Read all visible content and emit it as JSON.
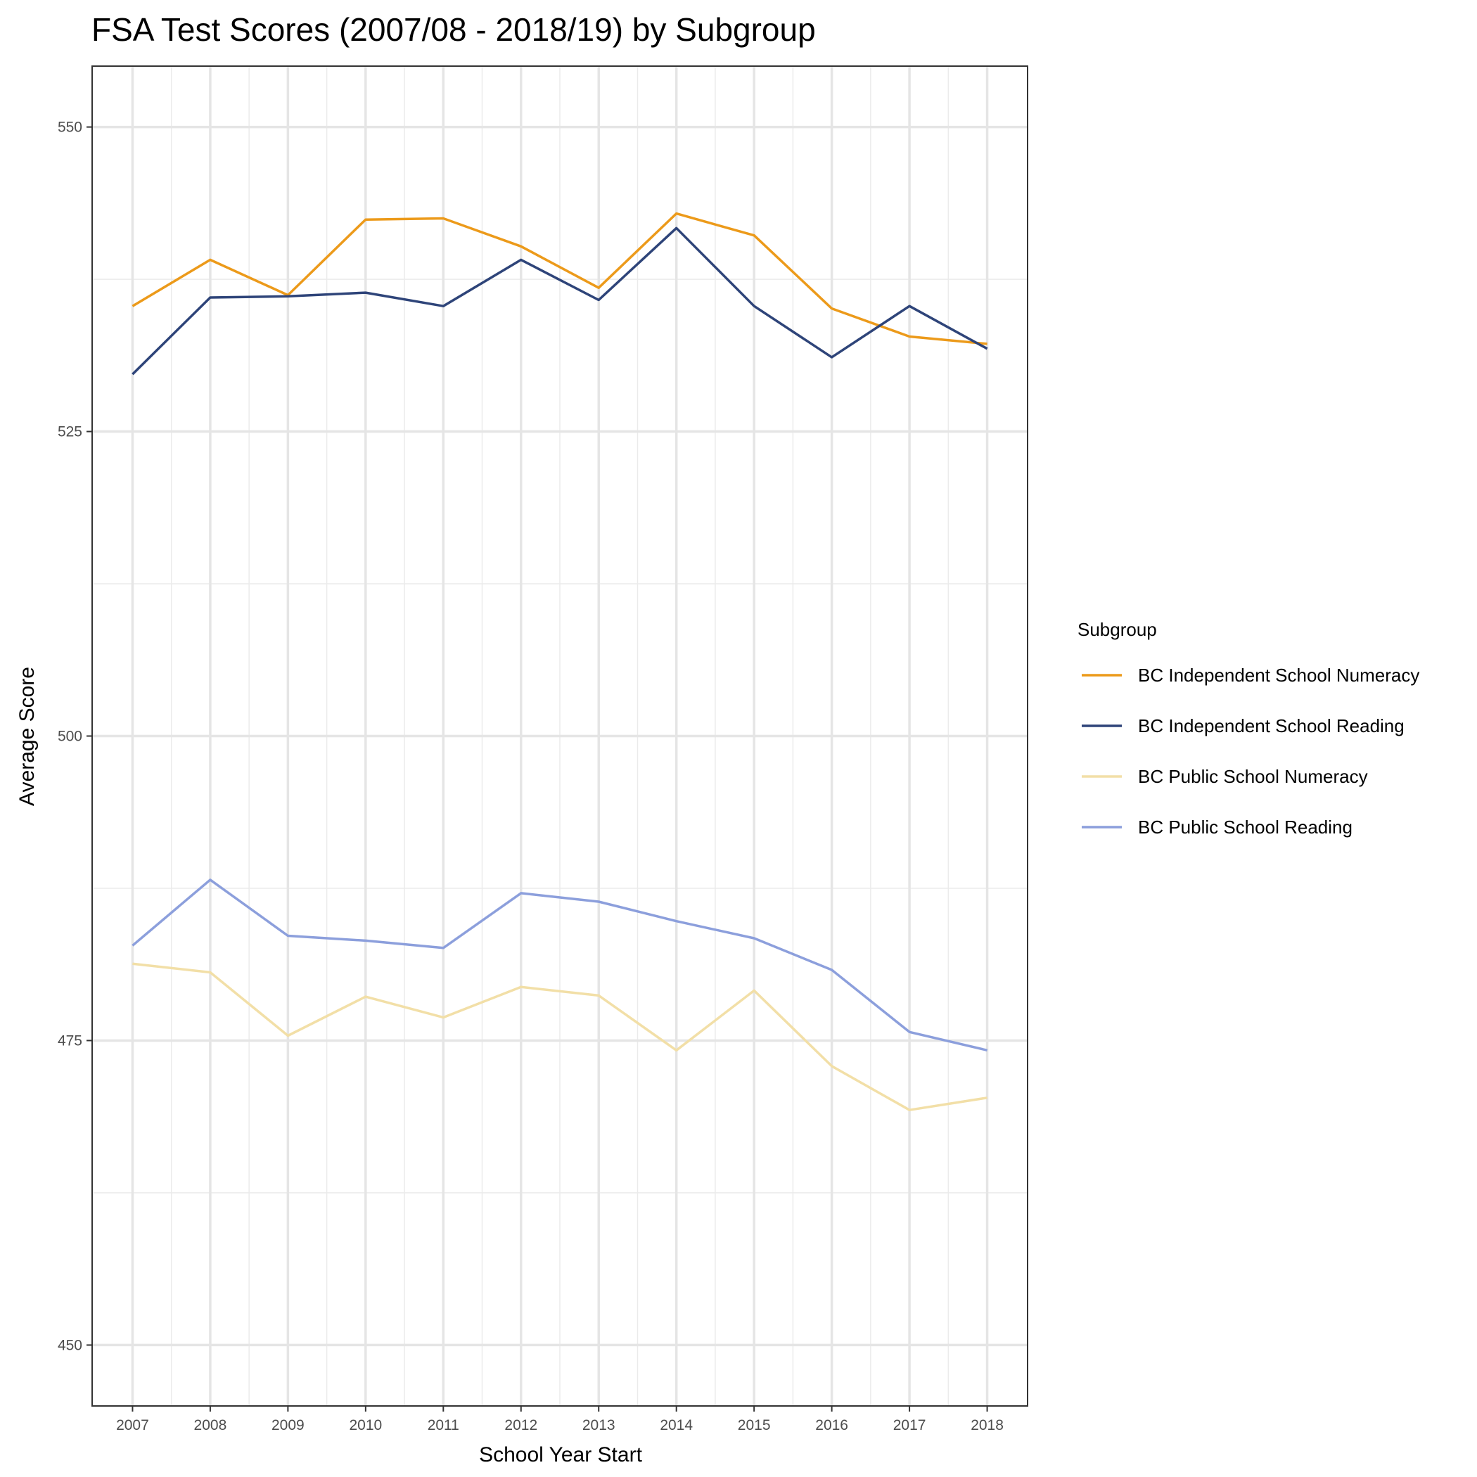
{
  "chart_data": {
    "type": "line",
    "title": "FSA Test Scores (2007/08 - 2018/19) by Subgroup",
    "xlabel": "School Year Start",
    "ylabel": "Average Score",
    "x": [
      2007,
      2008,
      2009,
      2010,
      2011,
      2012,
      2013,
      2014,
      2015,
      2016,
      2017,
      2018
    ],
    "x_tick_labels": [
      "2007",
      "2008",
      "2009",
      "2010",
      "2011",
      "2012",
      "2013",
      "2014",
      "2015",
      "2016",
      "2017",
      "2018"
    ],
    "y_ticks": [
      450,
      475,
      500,
      525,
      550
    ],
    "y_tick_labels": [
      "450",
      "475",
      "500",
      "525",
      "550"
    ],
    "xlim": [
      2006.48,
      2018.52
    ],
    "ylim": [
      445,
      555
    ],
    "grid": true,
    "legend": {
      "title": "Subgroup",
      "position": "right"
    },
    "series": [
      {
        "name": "BC Independent School Numeracy",
        "color": "#EC9A1A",
        "values": [
          535.3,
          539.1,
          536.2,
          542.4,
          542.5,
          540.2,
          536.8,
          542.9,
          541.1,
          535.1,
          532.8,
          532.2
        ]
      },
      {
        "name": "BC Independent School Reading",
        "color": "#2E4479",
        "values": [
          529.7,
          536.0,
          536.1,
          536.4,
          535.3,
          539.1,
          535.8,
          541.7,
          535.3,
          531.1,
          535.3,
          531.8
        ]
      },
      {
        "name": "BC Public School Numeracy",
        "color": "#F2DFA7",
        "values": [
          481.3,
          480.6,
          475.4,
          478.6,
          476.9,
          479.4,
          478.7,
          474.2,
          479.1,
          472.9,
          469.3,
          470.3
        ]
      },
      {
        "name": "BC Public School Reading",
        "color": "#8C9FDC",
        "values": [
          482.8,
          488.2,
          483.6,
          483.2,
          482.6,
          487.1,
          486.4,
          484.8,
          483.4,
          480.8,
          475.7,
          474.2
        ]
      }
    ]
  }
}
